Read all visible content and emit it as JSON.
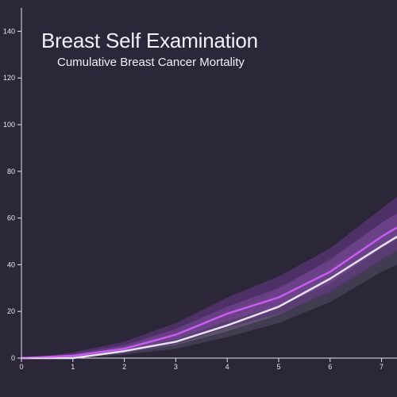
{
  "title": "Breast Self Examination",
  "subtitle": "Cumulative Breast Cancer Mortality",
  "colors": {
    "background": "#2b2638",
    "axis": "#e8e4f0",
    "bse_line": "#c85cf0",
    "bse_band_outer": "#5a3576",
    "bse_band_inner": "#7a4698",
    "control_line": "#e6e2ec",
    "control_band_outer": "#4a4458",
    "control_band_inner": "#6a627a"
  },
  "chart_data": {
    "type": "line",
    "title": "Breast Self Examination",
    "subtitle": "Cumulative Breast Cancer Mortality",
    "xlabel": "",
    "ylabel": "",
    "xlim": [
      0,
      7.3
    ],
    "ylim": [
      0,
      150
    ],
    "x_ticks": [
      "0",
      "1",
      "2",
      "3",
      "4",
      "5",
      "6",
      "7"
    ],
    "y_ticks": [
      "0",
      "20",
      "40",
      "60",
      "80",
      "100",
      "120",
      "140"
    ],
    "grid": false,
    "x": [
      0,
      0.5,
      1,
      2,
      3,
      4,
      5,
      6,
      7,
      7.3
    ],
    "series": [
      {
        "key": "bse",
        "values": [
          0,
          0.5,
          1,
          4,
          10,
          19,
          26,
          37,
          52,
          56
        ],
        "band_outer_low": [
          0,
          0.2,
          0.5,
          2,
          6,
          13,
          19,
          28,
          42,
          46
        ],
        "band_outer_high": [
          0,
          1,
          2.5,
          7,
          15,
          26,
          35,
          47,
          64,
          69
        ],
        "band_inner_low": [
          0,
          0.3,
          0.7,
          3,
          8,
          16,
          22,
          32,
          47,
          51
        ],
        "band_inner_high": [
          0,
          0.8,
          1.8,
          5.5,
          12.5,
          22,
          30,
          42,
          58,
          62
        ]
      },
      {
        "key": "control",
        "values": [
          0,
          0,
          0,
          3,
          7,
          14,
          22,
          34,
          48,
          52
        ],
        "band_outer_low": [
          0,
          0,
          0,
          1.5,
          4,
          9,
          15,
          24,
          37,
          40
        ],
        "band_outer_high": [
          0,
          0.5,
          1,
          5,
          11,
          20,
          29,
          43,
          58,
          62
        ],
        "band_inner_low": [
          0,
          0,
          0,
          2.2,
          5.5,
          11.5,
          18.5,
          29,
          42.5,
          46
        ],
        "band_inner_high": [
          0,
          0.3,
          0.5,
          4,
          9,
          17,
          26,
          39,
          53,
          57
        ]
      }
    ]
  }
}
